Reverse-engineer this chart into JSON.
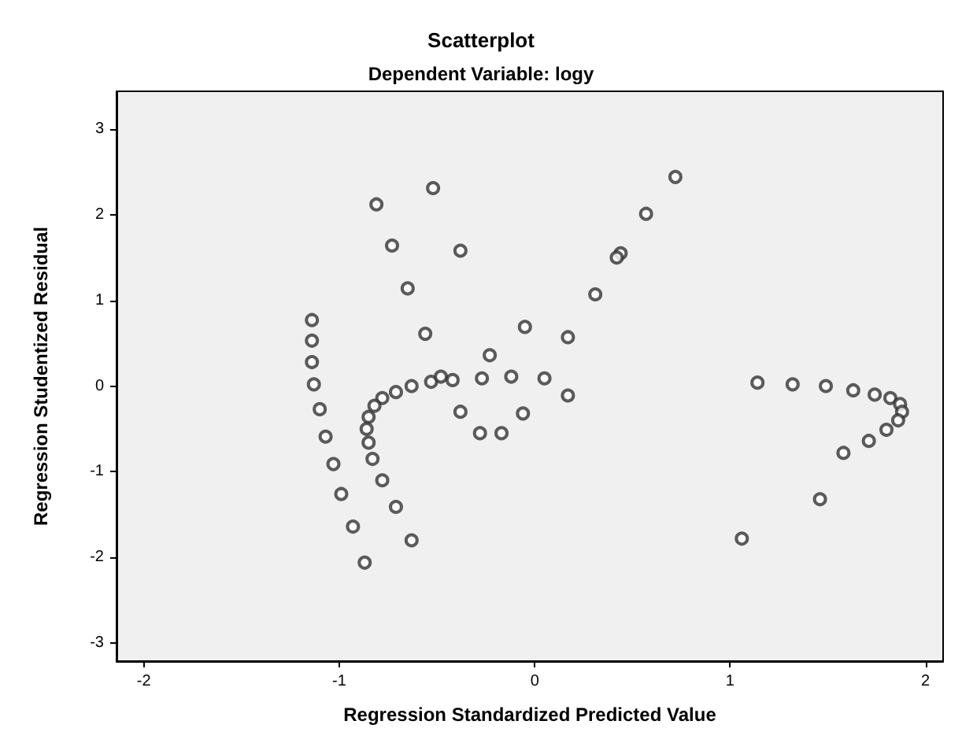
{
  "chart_data": {
    "type": "scatter",
    "title": "Scatterplot",
    "subtitle": "Dependent Variable: logy",
    "xlabel": "Regression Standardized Predicted Value",
    "ylabel": "Regression Studentized Residual",
    "marker": "circle",
    "grid": false,
    "xlim": [
      -2.14,
      2.09
    ],
    "ylim": [
      -3.21,
      3.44
    ],
    "xticks": [
      -2,
      -1,
      0,
      1,
      2
    ],
    "yticks": [
      -3,
      -2,
      -1,
      0,
      1,
      2,
      3
    ],
    "series": [
      {
        "color": "#333333",
        "x": [
          0.72,
          0.57,
          0.44,
          0.42,
          0.31,
          0.17,
          0.17,
          0.05,
          -0.52,
          -0.81,
          -0.73,
          -0.38,
          -0.65,
          -1.14,
          -1.14,
          -1.14,
          -0.56,
          -0.23,
          -0.05,
          -1.13,
          -1.1,
          -1.07,
          -1.03,
          -0.99,
          -0.93,
          -0.87,
          -0.78,
          -0.82,
          -0.85,
          -0.86,
          -0.85,
          -0.83,
          -0.78,
          -0.71,
          -0.63,
          -0.71,
          -0.63,
          -0.53,
          -0.48,
          -0.42,
          -0.27,
          -0.12,
          -0.38,
          -0.28,
          -0.17,
          -0.06,
          1.14,
          1.32,
          1.49,
          1.63,
          1.74,
          1.82,
          1.87,
          1.88,
          1.86,
          1.8,
          1.71,
          1.58,
          1.46,
          1.06
        ],
        "values": [
          2.44,
          2.01,
          1.55,
          1.5,
          1.07,
          0.57,
          -0.11,
          0.09,
          2.31,
          2.12,
          1.64,
          1.58,
          1.14,
          0.77,
          0.53,
          0.28,
          0.61,
          0.36,
          0.69,
          0.02,
          -0.27,
          -0.59,
          -0.91,
          -1.26,
          -1.64,
          -2.06,
          -0.14,
          -0.23,
          -0.36,
          -0.5,
          -0.66,
          -0.85,
          -1.1,
          -1.41,
          -1.8,
          -0.07,
          0.0,
          0.05,
          0.11,
          0.07,
          0.09,
          0.11,
          -0.3,
          -0.55,
          -0.55,
          -0.32,
          0.04,
          0.02,
          0.0,
          -0.05,
          -0.1,
          -0.14,
          -0.21,
          -0.3,
          -0.4,
          -0.51,
          -0.64,
          -0.78,
          -1.32,
          -1.78
        ]
      }
    ]
  }
}
